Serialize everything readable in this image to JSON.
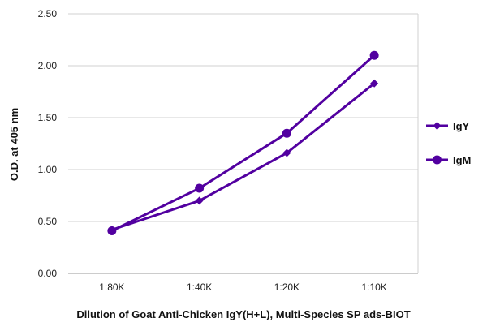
{
  "chart_data": {
    "type": "line",
    "title": "",
    "xlabel": "Dilution of Goat Anti-Chicken IgY(H+L), Multi-Species SP ads-BIOT",
    "ylabel": "O.D. at 405 nm",
    "categories": [
      "1:80K",
      "1:40K",
      "1:20K",
      "1:10K"
    ],
    "y_ticks": [
      "0.00",
      "0.50",
      "1.00",
      "1.50",
      "2.00",
      "2.50"
    ],
    "ylim": [
      0,
      2.5
    ],
    "grid": "horizontal",
    "legend_position": "right",
    "series": [
      {
        "name": "IgY",
        "marker": "diamond",
        "color": "#5200a0",
        "values": [
          0.42,
          0.7,
          1.16,
          1.83
        ]
      },
      {
        "name": "IgM",
        "marker": "circle",
        "color": "#5200a0",
        "values": [
          0.41,
          0.82,
          1.35,
          2.1
        ]
      }
    ]
  }
}
